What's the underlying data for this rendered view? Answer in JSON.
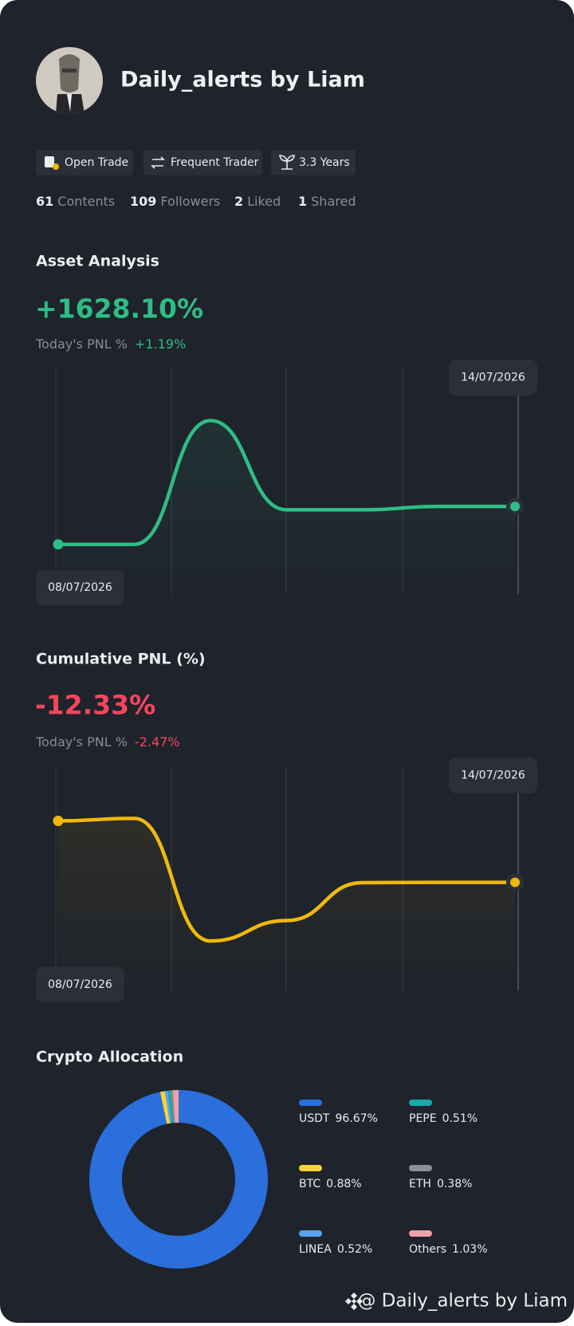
{
  "profile": {
    "name": "Daily_alerts by Liam",
    "badges": [
      "Open Trade",
      "Frequent Trader",
      "3.3 Years"
    ],
    "stats": [
      {
        "count": "61",
        "label": "Contents"
      },
      {
        "count": "109",
        "label": "Followers"
      },
      {
        "count": "2",
        "label": "Liked"
      },
      {
        "count": "1",
        "label": "Shared"
      }
    ]
  },
  "chart_data": [
    {
      "type": "line",
      "title": "Asset Analysis",
      "headline": "+1628.10%",
      "today_label": "Today's PNL %",
      "today_value": "+1.19%",
      "x": [
        "08/07/2026",
        null,
        null,
        null,
        null,
        null,
        "14/07/2026"
      ],
      "values": [
        0,
        0,
        5318,
        1484,
        1484,
        1628,
        1628.1
      ],
      "color": "#2ebd85",
      "ylim": [
        -2135,
        7562
      ]
    },
    {
      "type": "line",
      "title": "Cumulative PNL (%)",
      "headline": "-12.33%",
      "today_label": "Today's PNL %",
      "today_value": "-2.47%",
      "x": [
        "08/07/2026",
        null,
        null,
        null,
        null,
        null,
        "14/07/2026"
      ],
      "values": [
        0,
        0.5,
        -24.1,
        -20.0,
        -12.4,
        -12.33,
        -12.33
      ],
      "color": "#f0b90b",
      "ylim": [
        -34,
        10.8
      ]
    },
    {
      "type": "pie",
      "title": "Crypto Allocation",
      "categories": [
        "USDT",
        "BTC",
        "LINEA",
        "PEPE",
        "ETH",
        "Others"
      ],
      "values": [
        96.67,
        0.88,
        0.52,
        0.51,
        0.38,
        1.03
      ],
      "value_labels": [
        "96.67%",
        "0.88%",
        "0.52%",
        "0.51%",
        "0.38%",
        "1.03%"
      ],
      "colors": [
        "#2a6fdb",
        "#f5d33a",
        "#5aa2f0",
        "#1aa9a8",
        "#8a8f98",
        "#f0a0a8"
      ]
    }
  ],
  "watermark": "@ Daily_alerts by Liam"
}
